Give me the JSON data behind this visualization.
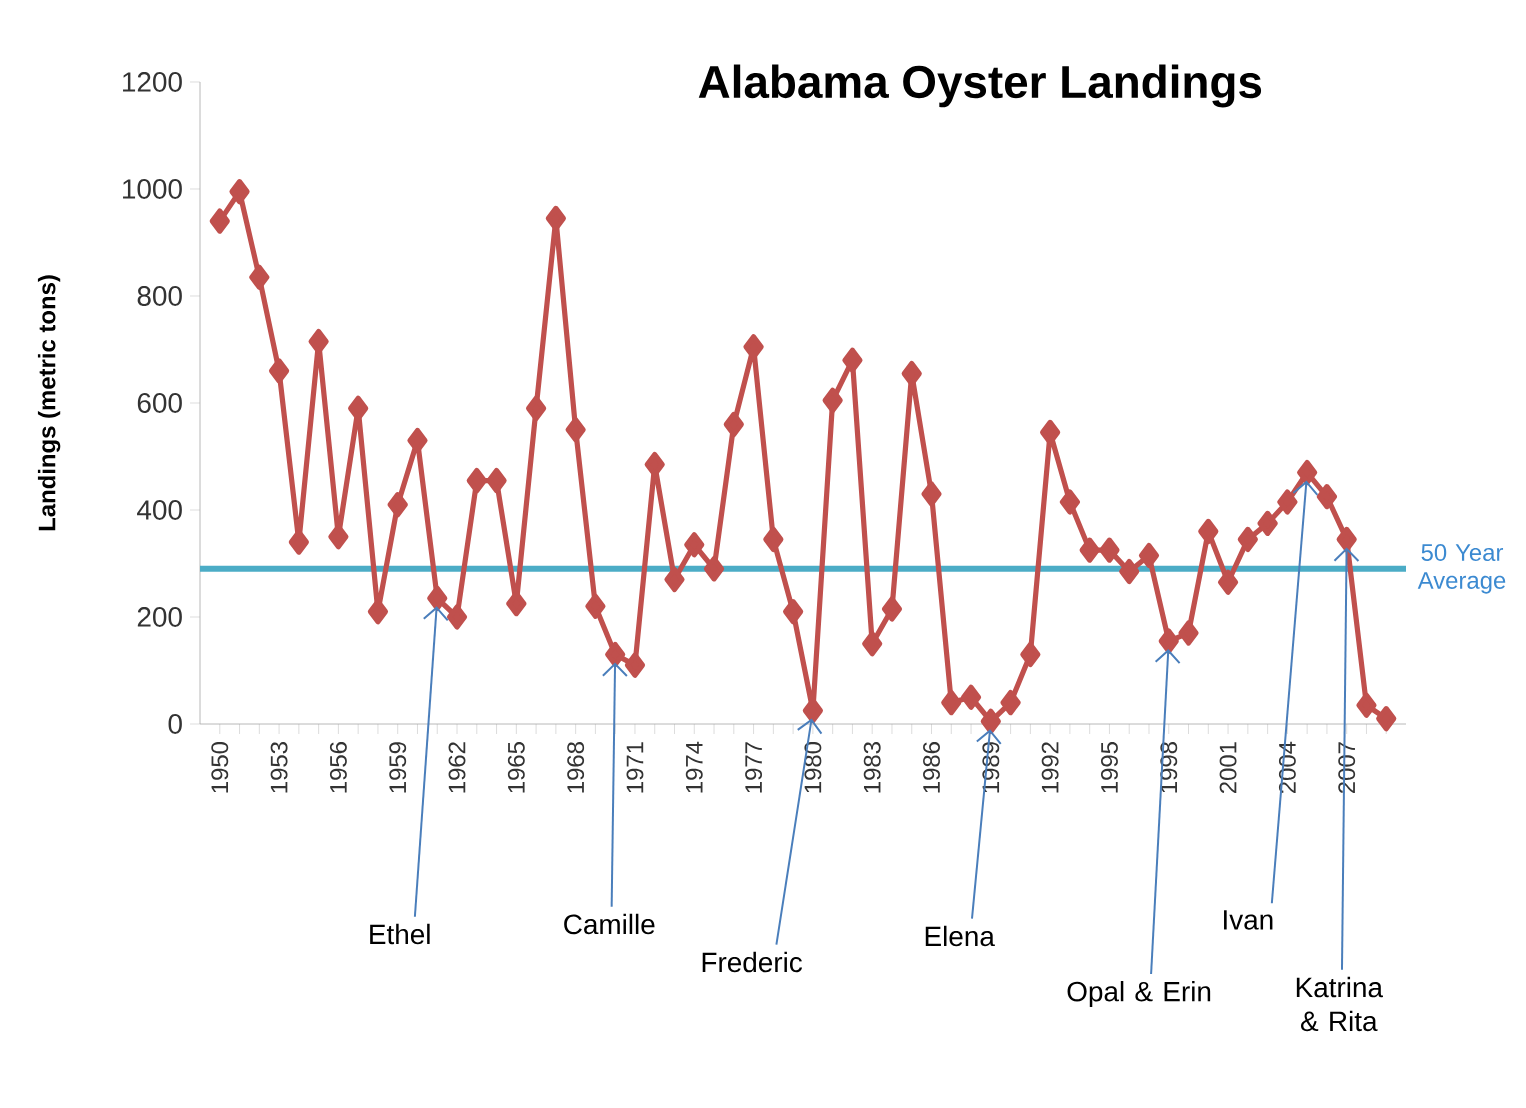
{
  "chart_data": {
    "type": "line",
    "title": "Alabama Oyster Landings",
    "ylabel": "Landings (metric tons)",
    "x": [
      1950,
      1951,
      1952,
      1953,
      1954,
      1955,
      1956,
      1957,
      1958,
      1959,
      1960,
      1961,
      1962,
      1963,
      1964,
      1965,
      1966,
      1967,
      1968,
      1969,
      1970,
      1971,
      1972,
      1973,
      1974,
      1975,
      1976,
      1977,
      1978,
      1979,
      1980,
      1981,
      1982,
      1983,
      1984,
      1985,
      1986,
      1987,
      1988,
      1989,
      1990,
      1991,
      1992,
      1993,
      1994,
      1995,
      1996,
      1997,
      1998,
      1999,
      2000,
      2001,
      2002,
      2003,
      2004,
      2005,
      2006,
      2007,
      2008,
      2009
    ],
    "series": [
      {
        "color": "#c0504d",
        "values": [
          940,
          995,
          835,
          660,
          340,
          715,
          350,
          590,
          210,
          410,
          530,
          235,
          200,
          455,
          455,
          225,
          590,
          945,
          550,
          220,
          130,
          110,
          485,
          270,
          335,
          290,
          560,
          705,
          345,
          210,
          25,
          605,
          680,
          150,
          215,
          655,
          430,
          40,
          50,
          5,
          40,
          130,
          545,
          415,
          325,
          325,
          285,
          315,
          155,
          170,
          360,
          265,
          345,
          375,
          415,
          470,
          425,
          345,
          35,
          10
        ]
      }
    ],
    "xlim": [
      1949,
      2010
    ],
    "ylim": [
      0,
      1200
    ],
    "xticks": [
      1950,
      {
        "value": 1951,
        "label": null
      },
      {
        "value": 1952,
        "label": null
      },
      1953,
      {
        "value": 1954,
        "label": null
      },
      {
        "value": 1955,
        "label": null
      },
      1956,
      {
        "value": 1957,
        "label": null
      },
      {
        "value": 1958,
        "label": null
      },
      1959,
      {
        "value": 1960,
        "label": null
      },
      {
        "value": 1961,
        "label": null
      },
      1962,
      {
        "value": 1963,
        "label": null
      },
      {
        "value": 1964,
        "label": null
      },
      1965,
      {
        "value": 1966,
        "label": null
      },
      {
        "value": 1967,
        "label": null
      },
      1968,
      {
        "value": 1969,
        "label": null
      },
      {
        "value": 1970,
        "label": null
      },
      1971,
      {
        "value": 1972,
        "label": null
      },
      {
        "value": 1973,
        "label": null
      },
      1974,
      {
        "value": 1975,
        "label": null
      },
      {
        "value": 1976,
        "label": null
      },
      1977,
      {
        "value": 1978,
        "label": null
      },
      {
        "value": 1979,
        "label": null
      },
      1980,
      {
        "value": 1981,
        "label": null
      },
      {
        "value": 1982,
        "label": null
      },
      1983,
      {
        "value": 1984,
        "label": null
      },
      {
        "value": 1985,
        "label": null
      },
      1986,
      {
        "value": 1987,
        "label": null
      },
      {
        "value": 1988,
        "label": null
      },
      1989,
      {
        "value": 1990,
        "label": null
      },
      {
        "value": 1991,
        "label": null
      },
      1992,
      {
        "value": 1993,
        "label": null
      },
      {
        "value": 1994,
        "label": null
      },
      1995,
      {
        "value": 1996,
        "label": null
      },
      {
        "value": 1997,
        "label": null
      },
      1998,
      {
        "value": 1999,
        "label": null
      },
      {
        "value": 2000,
        "label": null
      },
      2001,
      {
        "value": 2002,
        "label": null
      },
      {
        "value": 2003,
        "label": null
      },
      2004,
      {
        "value": 2005,
        "label": null
      },
      {
        "value": 2006,
        "label": null
      },
      2007,
      {
        "value": 2008,
        "label": null
      },
      {
        "value": 2009,
        "label": null
      }
    ],
    "yticks": [
      0,
      200,
      400,
      600,
      800,
      1000,
      1200
    ],
    "ref_lines": [
      {
        "axis": "y",
        "value": 290,
        "label": "50 Year Average",
        "color": "#4bacc6"
      }
    ],
    "annotations": [
      {
        "text": "Ethel",
        "x": 1961,
        "y": 235
      },
      {
        "text": "Camille",
        "x": 1970,
        "y": 130
      },
      {
        "text": "Frederic",
        "x": 1980,
        "y": 25
      },
      {
        "text": "Elena",
        "x": 1989,
        "y": 5
      },
      {
        "text": "Opal & Erin",
        "x": 1998,
        "y": 155
      },
      {
        "text": "Ivan",
        "x": 2005,
        "y": 470
      },
      {
        "text": "Katrina & Rita",
        "x": 2007,
        "y": 345
      }
    ],
    "marker": "diamond",
    "line_style": "solid",
    "grid": false
  }
}
